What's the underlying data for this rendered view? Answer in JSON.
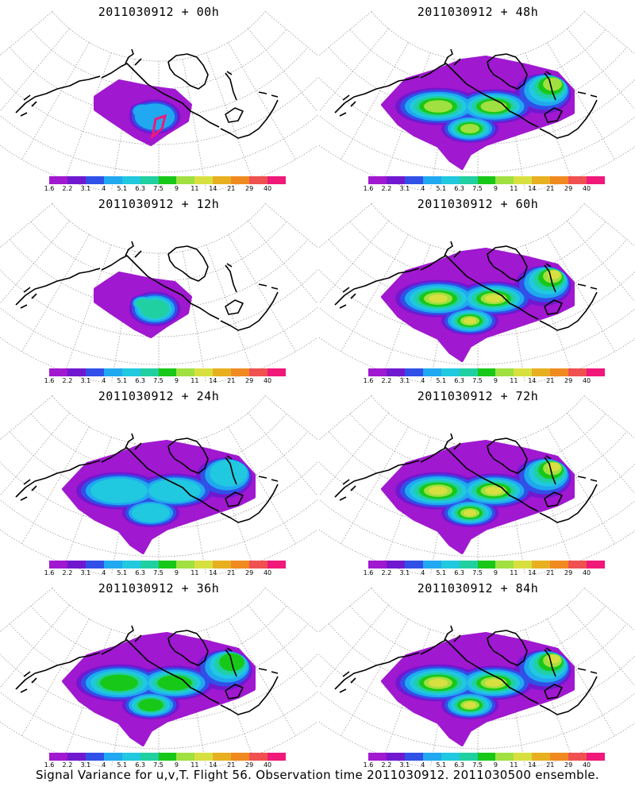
{
  "panels": [
    {
      "title": "2011030912 + 00h",
      "max_level": 3
    },
    {
      "title": "2011030912 + 48h",
      "max_level": 7
    },
    {
      "title": "2011030912 + 12h",
      "max_level": 5
    },
    {
      "title": "2011030912 + 60h",
      "max_level": 8
    },
    {
      "title": "2011030912 + 24h",
      "max_level": 4
    },
    {
      "title": "2011030912 + 72h",
      "max_level": 8
    },
    {
      "title": "2011030912 + 36h",
      "max_level": 6
    },
    {
      "title": "2011030912 + 84h",
      "max_level": 8
    }
  ],
  "colorbar": {
    "colors": [
      "#a018d0",
      "#7018d0",
      "#3050e8",
      "#20a8f0",
      "#20c8e0",
      "#20d0a0",
      "#18c818",
      "#a0e040",
      "#d8e040",
      "#e8b020",
      "#f08a20",
      "#f05050",
      "#f01878"
    ],
    "labels": [
      "1.6",
      "2.2",
      "3.1",
      "4",
      "5.1",
      "6.3",
      "7.5",
      "9",
      "11",
      "14",
      "21",
      "29",
      "40"
    ]
  },
  "footer": "Signal Variance for u,v,T. Flight 56. Observation time 2011030912. 2011030500 ensemble."
}
